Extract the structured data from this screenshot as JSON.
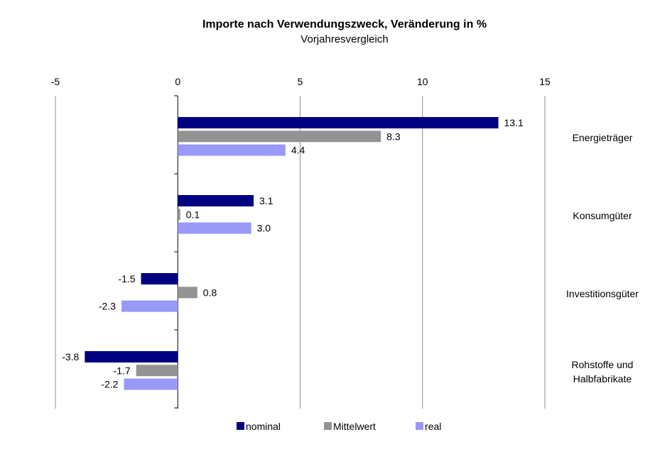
{
  "chart_data": {
    "type": "bar",
    "orientation": "horizontal",
    "title": "Importe nach Verwendungszweck, Veränderung in %",
    "subtitle": "Vorjahresvergleich",
    "xlim": [
      -5,
      15
    ],
    "xticks": [
      "-5",
      "0",
      "5",
      "10",
      "15"
    ],
    "grid": true,
    "legend_position": "bottom",
    "categories": [
      "Energieträger",
      "Konsumgüter",
      "Investitionsgüter",
      "Rohstoffe und Halbfabrikate"
    ],
    "category_lines": [
      [
        "Energieträger"
      ],
      [
        "Konsumgüter"
      ],
      [
        "Investitionsgüter"
      ],
      [
        "Rohstoffe und",
        "Halbfabrikate"
      ]
    ],
    "series": [
      {
        "name": "nominal",
        "color": "#000080",
        "values": [
          13.1,
          3.1,
          -1.5,
          -3.8
        ],
        "labels": [
          "13.1",
          "3.1",
          "-1.5",
          "-3.8"
        ]
      },
      {
        "name": "Mittelwert",
        "color": "#939393",
        "values": [
          8.3,
          0.1,
          0.8,
          -1.7
        ],
        "labels": [
          "8.3",
          "0.1",
          "0.8",
          "-1.7"
        ]
      },
      {
        "name": "real",
        "color": "#9999f8",
        "values": [
          4.4,
          3.0,
          -2.3,
          -2.2
        ],
        "labels": [
          "4.4",
          "3.0",
          "-2.3",
          "-2.2"
        ]
      }
    ]
  }
}
